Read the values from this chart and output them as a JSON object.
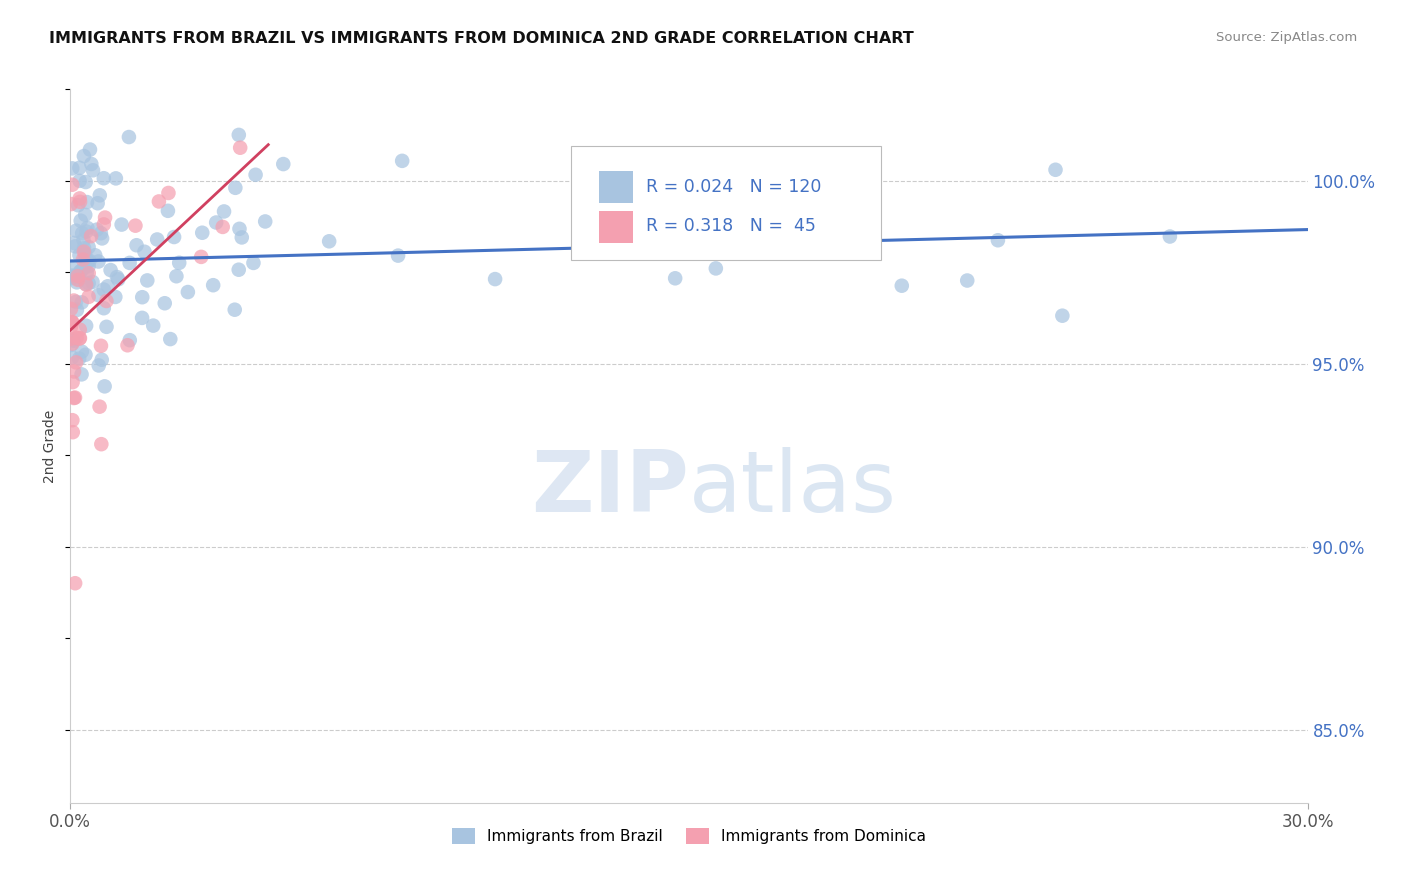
{
  "title": "IMMIGRANTS FROM BRAZIL VS IMMIGRANTS FROM DOMINICA 2ND GRADE CORRELATION CHART",
  "source": "Source: ZipAtlas.com",
  "ylabel": "2nd Grade",
  "xlim": [
    0.0,
    30.0
  ],
  "ylim": [
    83.0,
    102.5
  ],
  "yticks": [
    85.0,
    90.0,
    95.0,
    100.0
  ],
  "ytick_labels": [
    "85.0%",
    "90.0%",
    "95.0%",
    "100.0%"
  ],
  "brazil_color": "#a8c4e0",
  "dominica_color": "#f4a0b0",
  "brazil_line_color": "#4472c4",
  "dominica_line_color": "#d04060",
  "brazil_R": 0.024,
  "brazil_N": 120,
  "dominica_R": 0.318,
  "dominica_N": 45,
  "legend_label_brazil": "Immigrants from Brazil",
  "legend_label_dominica": "Immigrants from Dominica",
  "watermark": "ZIPatlas",
  "watermark_zip": "ZIP",
  "watermark_atlas": "atlas"
}
